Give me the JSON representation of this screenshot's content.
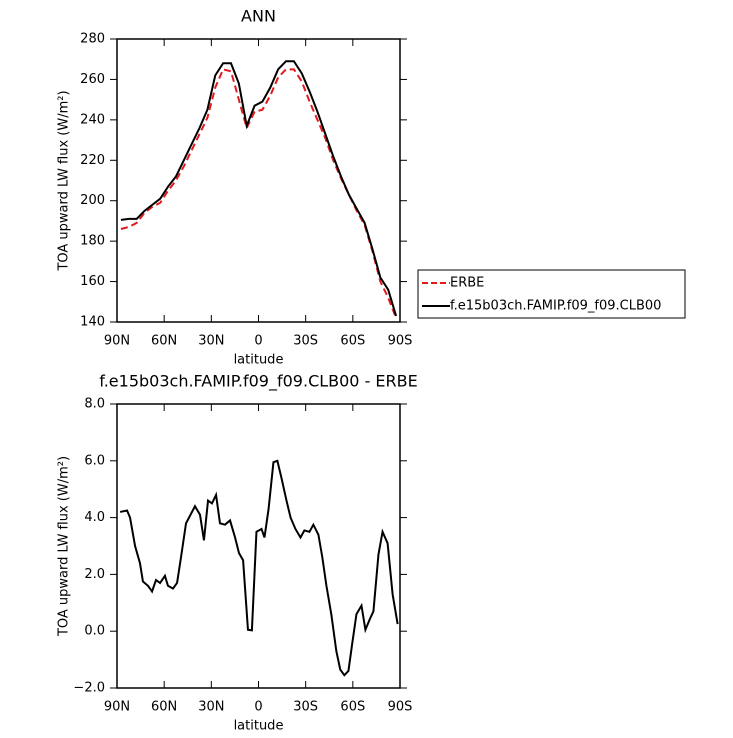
{
  "chart_data": [
    {
      "type": "line",
      "title": "ANN",
      "xlabel": "latitude",
      "ylabel": "TOA upward LW flux (W/m²)",
      "x": [
        87.5,
        82.5,
        77.5,
        72.5,
        67.5,
        62.5,
        57.5,
        52.5,
        47.5,
        42.5,
        37.5,
        32.5,
        27.5,
        22.5,
        17.5,
        12.5,
        7.5,
        2.5,
        -2.5,
        -7.5,
        -12.5,
        -17.5,
        -22.5,
        -27.5,
        -32.5,
        -37.5,
        -42.5,
        -47.5,
        -52.5,
        -57.5,
        -62.5,
        -67.5,
        -72.5,
        -77.5,
        -82.5,
        -87.5
      ],
      "series": [
        {
          "name": "ERBE",
          "color": "#e31a1c",
          "style": "dashed",
          "values": [
            186,
            187,
            189,
            194,
            197,
            199,
            205,
            210,
            217,
            225,
            233,
            241,
            256,
            265,
            264,
            250,
            236,
            244,
            245,
            252,
            261,
            265,
            265,
            259,
            249,
            240,
            231,
            220,
            211,
            203,
            195,
            188,
            175,
            160,
            152,
            142
          ]
        },
        {
          "name": "f.e15b03ch.FAMIP.f09_f09.CLB00",
          "color": "#000000",
          "style": "solid",
          "values": [
            190.5,
            191,
            191,
            195,
            198,
            201,
            207,
            212,
            220,
            228,
            236,
            245,
            262,
            268,
            268,
            258,
            237,
            247,
            249,
            256,
            265,
            269,
            269,
            263,
            254,
            244,
            233,
            222,
            212,
            203,
            196,
            189,
            176,
            162,
            156,
            143
          ]
        }
      ],
      "legend": "right",
      "xlim": [
        90,
        -90
      ],
      "xticks": [
        {
          "value": 90,
          "label": "90N"
        },
        {
          "value": 60,
          "label": "60N"
        },
        {
          "value": 30,
          "label": "30N"
        },
        0,
        {
          "value": -30,
          "label": "30S"
        },
        {
          "value": -60,
          "label": "60S"
        },
        {
          "value": -90,
          "label": "90S"
        }
      ],
      "ylim": [
        140,
        280
      ],
      "yticks": [
        140,
        160,
        180,
        200,
        220,
        240,
        260,
        280
      ]
    },
    {
      "type": "line",
      "title": "f.e15b03ch.FAMIP.f09_f09.CLB00 - ERBE",
      "xlabel": "latitude",
      "ylabel": "TOA upward LW flux (W/m²)",
      "x": [
        88,
        83.6,
        81.7,
        78.5,
        75.4,
        73.5,
        70.3,
        67.7,
        65.2,
        62.6,
        59.5,
        57.6,
        54.4,
        51.8,
        49.3,
        46.1,
        40.4,
        37.2,
        34.7,
        32.1,
        29.6,
        27,
        24.5,
        21.3,
        18.1,
        14.9,
        12.4,
        9.8,
        6.7,
        4.2,
        1.3,
        -1.9,
        -3.8,
        -6.4,
        -9.5,
        -12,
        -14.6,
        -17.8,
        -20.4,
        -23.5,
        -26.7,
        -29.2,
        -32.4,
        -34.9,
        -38.1,
        -40.6,
        -43.2,
        -46.3,
        -49.5,
        -52,
        -54.6,
        -57.2,
        -59.7,
        -62.3,
        -65.5,
        -68,
        -70.6,
        -73.1,
        -76.3,
        -78.9,
        -82.1,
        -85.3,
        -88.5
      ],
      "values": [
        4.2,
        4.25,
        4.0,
        3.0,
        2.4,
        1.75,
        1.6,
        1.4,
        1.8,
        1.7,
        1.95,
        1.6,
        1.5,
        1.7,
        2.6,
        3.8,
        4.4,
        4.1,
        3.2,
        4.6,
        4.5,
        4.8,
        3.8,
        3.75,
        3.9,
        3.3,
        2.75,
        2.5,
        0.05,
        0.03,
        3.5,
        3.6,
        3.3,
        4.3,
        5.95,
        6.0,
        5.4,
        4.6,
        4.0,
        3.6,
        3.3,
        3.55,
        3.5,
        3.75,
        3.4,
        2.6,
        1.6,
        0.6,
        -0.7,
        -1.35,
        -1.55,
        -1.4,
        -0.4,
        0.6,
        0.9,
        0.05,
        0.4,
        0.7,
        2.7,
        3.5,
        3.1,
        1.3,
        0.25
      ],
      "color": "#000000",
      "xlim": [
        90,
        -90
      ],
      "xticks": [
        {
          "value": 90,
          "label": "90N"
        },
        {
          "value": 60,
          "label": "60N"
        },
        {
          "value": 30,
          "label": "30N"
        },
        0,
        {
          "value": -30,
          "label": "30S"
        },
        {
          "value": -60,
          "label": "60S"
        },
        {
          "value": -90,
          "label": "90S"
        }
      ],
      "ylim": [
        -2,
        8
      ],
      "yticks": [
        {
          "value": -2,
          "label": "−2.0"
        },
        {
          "value": 0,
          "label": "0.0"
        },
        {
          "value": 2,
          "label": "2.0"
        },
        {
          "value": 4,
          "label": "4.0"
        },
        {
          "value": 6,
          "label": "6.0"
        },
        {
          "value": 8,
          "label": "8.0"
        }
      ]
    }
  ]
}
